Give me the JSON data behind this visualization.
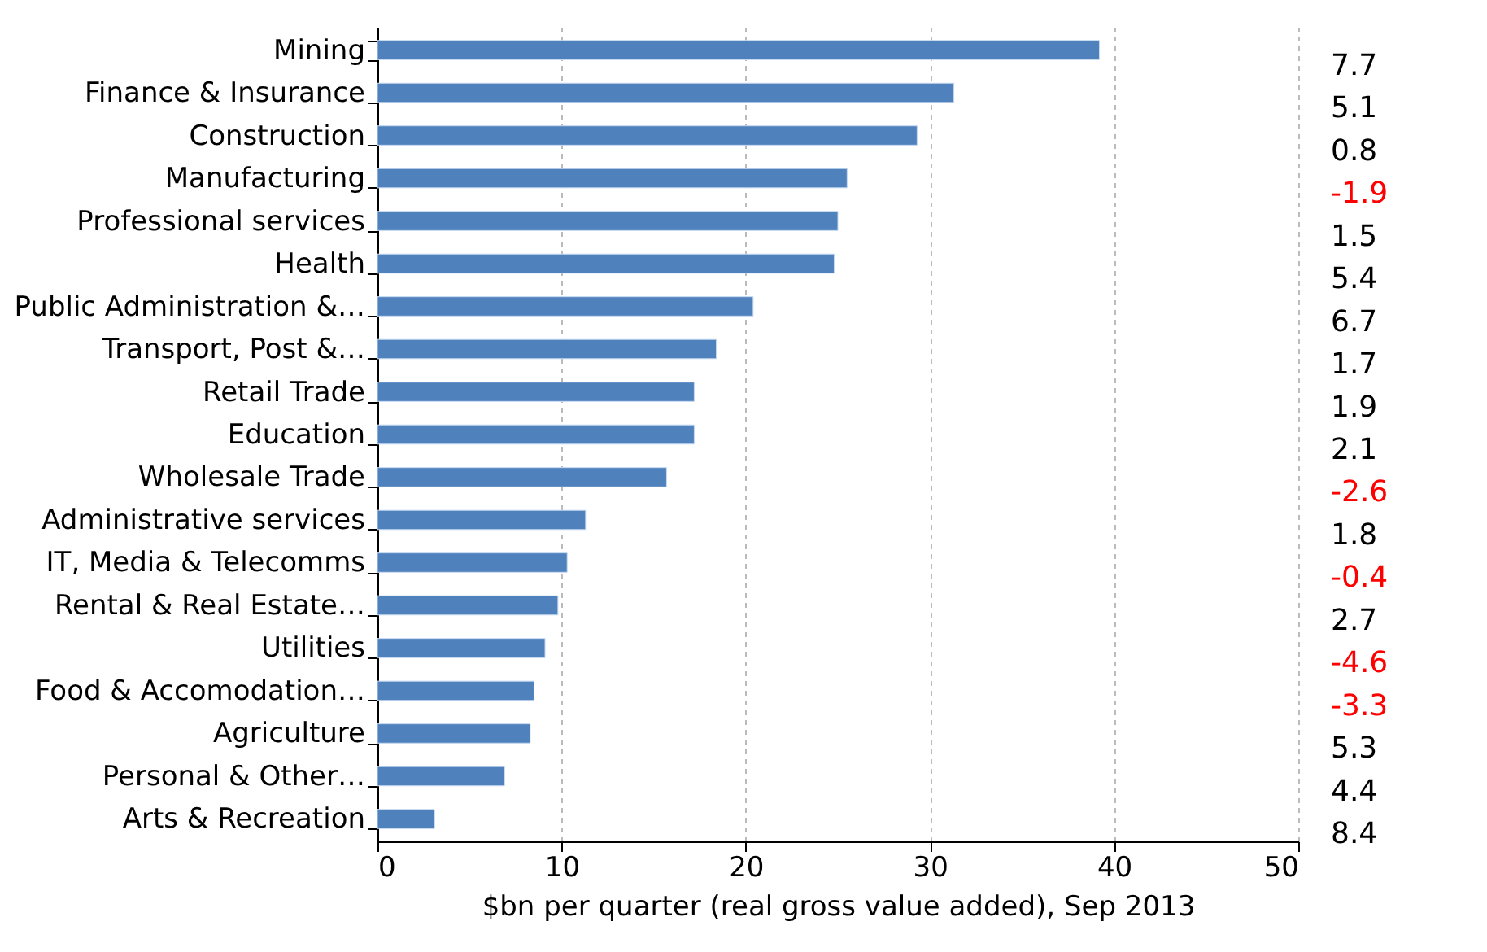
{
  "chart_data": {
    "type": "bar",
    "orientation": "horizontal",
    "categories": [
      "Mining",
      "Finance & Insurance",
      "Construction",
      "Manufacturing",
      "Professional services",
      "Health",
      "Public Administration &…",
      "Transport, Post &…",
      "Retail Trade",
      "Education",
      "Wholesale Trade",
      "Administrative services",
      "IT, Media & Telecomms",
      "Rental & Real Estate…",
      "Utilities",
      "Food & Accomodation…",
      "Agriculture",
      "Personal & Other…",
      "Arts & Recreation"
    ],
    "values": [
      39.2,
      31.3,
      29.3,
      25.5,
      25.0,
      24.8,
      20.4,
      18.4,
      17.2,
      17.2,
      15.7,
      11.3,
      10.3,
      9.8,
      9.1,
      8.5,
      8.3,
      6.9,
      3.1
    ],
    "color": "#4f81bd",
    "xlabel": "$bn per quarter (real gross value added), Sep 2013",
    "xlim": [
      0,
      50
    ],
    "xticks": [
      0,
      10,
      20,
      30,
      40,
      50
    ],
    "grid": "x",
    "annotations": [
      "7.7",
      "5.1",
      "0.8",
      "-1.9",
      "1.5",
      "5.4",
      "6.7",
      "1.7",
      "1.9",
      "2.1",
      "-2.6",
      "1.8",
      "-0.4",
      "2.7",
      "-4.6",
      "-3.3",
      "5.3",
      "4.4",
      "8.4"
    ]
  }
}
